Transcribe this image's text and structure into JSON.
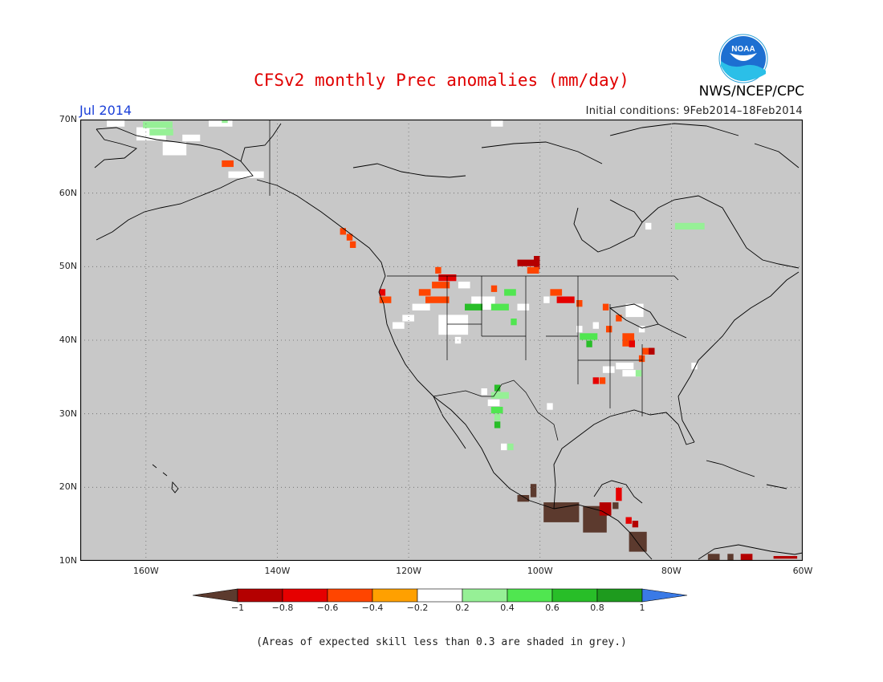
{
  "header": {
    "title": "CFSv2 monthly Prec anomalies (mm/day)",
    "month": "Jul 2014",
    "initial_conditions": "Initial conditions: 9Feb2014–18Feb2014",
    "agency": "NWS/NCEP/CPC",
    "logo_text": "NOAA"
  },
  "map": {
    "lon_range": [
      -170,
      -60
    ],
    "lat_range": [
      10,
      70
    ],
    "background_color": "#c8c8c8",
    "grid": "dotted",
    "lat_ticks": [
      {
        "value": 70,
        "label": "70N"
      },
      {
        "value": 60,
        "label": "60N"
      },
      {
        "value": 50,
        "label": "50N"
      },
      {
        "value": 40,
        "label": "40N"
      },
      {
        "value": 30,
        "label": "30N"
      },
      {
        "value": 20,
        "label": "20N"
      },
      {
        "value": 10,
        "label": "10N"
      }
    ],
    "lon_ticks": [
      {
        "value": -160,
        "label": "160W"
      },
      {
        "value": -140,
        "label": "140W"
      },
      {
        "value": -120,
        "label": "120W"
      },
      {
        "value": -100,
        "label": "100W"
      },
      {
        "value": -80,
        "label": "80W"
      },
      {
        "value": -60,
        "label": "60W"
      }
    ],
    "anomaly_cells": [
      {
        "lon": -165.5,
        "lat": 69.5,
        "w": 3,
        "h": 1,
        "v": 0
      },
      {
        "lon": -161,
        "lat": 68.5,
        "w": 5,
        "h": 2,
        "v": 0
      },
      {
        "lon": -160,
        "lat": 69.3,
        "w": 5,
        "h": 1,
        "v": 0.3
      },
      {
        "lon": -159,
        "lat": 68.3,
        "w": 4,
        "h": 1,
        "v": 0.3
      },
      {
        "lon": -157,
        "lat": 66.5,
        "w": 4,
        "h": 2,
        "v": 0
      },
      {
        "lon": -154,
        "lat": 67.5,
        "w": 3,
        "h": 1,
        "v": 0
      },
      {
        "lon": -150,
        "lat": 69.5,
        "w": 4,
        "h": 1,
        "v": 0
      },
      {
        "lon": -148,
        "lat": 70,
        "w": 1,
        "h": 1,
        "v": 0.3
      },
      {
        "lon": -148,
        "lat": 64,
        "w": 2,
        "h": 1,
        "v": -0.4
      },
      {
        "lon": -147,
        "lat": 62.5,
        "w": 6,
        "h": 1,
        "v": 0
      },
      {
        "lon": -107,
        "lat": 69.5,
        "w": 2,
        "h": 1,
        "v": 0
      },
      {
        "lon": -130,
        "lat": 54.8,
        "w": 1,
        "h": 1,
        "v": -0.4
      },
      {
        "lon": -129,
        "lat": 54,
        "w": 1,
        "h": 1,
        "v": -0.4
      },
      {
        "lon": -128.5,
        "lat": 53,
        "w": 1,
        "h": 1,
        "v": -0.4
      },
      {
        "lon": -124,
        "lat": 46.5,
        "w": 1,
        "h": 1,
        "v": -0.6
      },
      {
        "lon": -124,
        "lat": 45.5,
        "w": 2,
        "h": 1,
        "v": -0.4
      },
      {
        "lon": -115.5,
        "lat": 49.5,
        "w": 1,
        "h": 1,
        "v": -0.4
      },
      {
        "lon": -115,
        "lat": 48.5,
        "w": 3,
        "h": 1,
        "v": -0.6
      },
      {
        "lon": -116,
        "lat": 47.5,
        "w": 3,
        "h": 1,
        "v": -0.4
      },
      {
        "lon": -118,
        "lat": 46.5,
        "w": 2,
        "h": 1,
        "v": -0.4
      },
      {
        "lon": -117,
        "lat": 45.5,
        "w": 4,
        "h": 1,
        "v": -0.4
      },
      {
        "lon": -119,
        "lat": 44.5,
        "w": 3,
        "h": 1,
        "v": 0
      },
      {
        "lon": -115,
        "lat": 43,
        "w": 5,
        "h": 3,
        "v": 0
      },
      {
        "lon": -110,
        "lat": 45.5,
        "w": 4,
        "h": 2,
        "v": 0
      },
      {
        "lon": -111,
        "lat": 44.5,
        "w": 3,
        "h": 1,
        "v": 0.6
      },
      {
        "lon": -107,
        "lat": 44.5,
        "w": 3,
        "h": 1,
        "v": 0.4
      },
      {
        "lon": -120.5,
        "lat": 43,
        "w": 2,
        "h": 1,
        "v": 0
      },
      {
        "lon": -122,
        "lat": 42,
        "w": 2,
        "h": 1,
        "v": 0
      },
      {
        "lon": -112,
        "lat": 47.5,
        "w": 2,
        "h": 1,
        "v": 0
      },
      {
        "lon": -107,
        "lat": 47,
        "w": 1,
        "h": 1,
        "v": -0.4
      },
      {
        "lon": -105,
        "lat": 46.5,
        "w": 2,
        "h": 1,
        "v": 0.4
      },
      {
        "lon": -103,
        "lat": 44.5,
        "w": 2,
        "h": 1,
        "v": 0
      },
      {
        "lon": -104,
        "lat": 42.5,
        "w": 1,
        "h": 1,
        "v": 0.4
      },
      {
        "lon": -112,
        "lat": 42,
        "w": 1,
        "h": 1,
        "v": 0
      },
      {
        "lon": -112.5,
        "lat": 40,
        "w": 1,
        "h": 1,
        "v": 0
      },
      {
        "lon": -103,
        "lat": 50.5,
        "w": 3,
        "h": 1,
        "v": -0.8
      },
      {
        "lon": -100.5,
        "lat": 51,
        "w": 1,
        "h": 2,
        "v": -0.8
      },
      {
        "lon": -101.5,
        "lat": 49.5,
        "w": 2,
        "h": 1,
        "v": -0.4
      },
      {
        "lon": -98,
        "lat": 46.5,
        "w": 2,
        "h": 1,
        "v": -0.4
      },
      {
        "lon": -97,
        "lat": 45.5,
        "w": 3,
        "h": 1,
        "v": -0.6
      },
      {
        "lon": -99,
        "lat": 45.5,
        "w": 1,
        "h": 1,
        "v": 0
      },
      {
        "lon": -94,
        "lat": 45,
        "w": 1,
        "h": 1,
        "v": -0.4
      },
      {
        "lon": -90,
        "lat": 44.5,
        "w": 1,
        "h": 1,
        "v": -0.4
      },
      {
        "lon": -86.5,
        "lat": 44.5,
        "w": 3,
        "h": 2,
        "v": 0
      },
      {
        "lon": -88,
        "lat": 43,
        "w": 1,
        "h": 1,
        "v": -0.4
      },
      {
        "lon": -91.5,
        "lat": 42,
        "w": 1,
        "h": 1,
        "v": 0
      },
      {
        "lon": -94,
        "lat": 41.5,
        "w": 1,
        "h": 1,
        "v": 0
      },
      {
        "lon": -93.5,
        "lat": 40.5,
        "w": 3,
        "h": 1,
        "v": 0.4
      },
      {
        "lon": -92.5,
        "lat": 39.5,
        "w": 1,
        "h": 1,
        "v": 0.6
      },
      {
        "lon": -89.5,
        "lat": 41.5,
        "w": 1,
        "h": 1,
        "v": -0.4
      },
      {
        "lon": -87,
        "lat": 40.5,
        "w": 2,
        "h": 2,
        "v": -0.4
      },
      {
        "lon": -86,
        "lat": 39.5,
        "w": 1,
        "h": 1,
        "v": -0.6
      },
      {
        "lon": -84.5,
        "lat": 41.5,
        "w": 1,
        "h": 1,
        "v": 0
      },
      {
        "lon": -84,
        "lat": 38.5,
        "w": 2,
        "h": 1,
        "v": -0.4
      },
      {
        "lon": -83,
        "lat": 38.5,
        "w": 1,
        "h": 1,
        "v": -0.8
      },
      {
        "lon": -84.5,
        "lat": 37.5,
        "w": 1,
        "h": 1,
        "v": -0.4
      },
      {
        "lon": -88,
        "lat": 36.5,
        "w": 3,
        "h": 1,
        "v": 0
      },
      {
        "lon": -90,
        "lat": 36,
        "w": 2,
        "h": 1,
        "v": 0
      },
      {
        "lon": -91.5,
        "lat": 34.5,
        "w": 1,
        "h": 1,
        "v": -0.6
      },
      {
        "lon": -90.5,
        "lat": 34.5,
        "w": 1,
        "h": 1,
        "v": -0.4
      },
      {
        "lon": -87,
        "lat": 35.5,
        "w": 3,
        "h": 1,
        "v": 0
      },
      {
        "lon": -85,
        "lat": 35.5,
        "w": 1,
        "h": 1,
        "v": 0.3
      },
      {
        "lon": -76.5,
        "lat": 36.5,
        "w": 1,
        "h": 1,
        "v": 0
      },
      {
        "lon": -106.5,
        "lat": 33.5,
        "w": 1,
        "h": 1,
        "v": 0.6
      },
      {
        "lon": -107,
        "lat": 32.5,
        "w": 3,
        "h": 1,
        "v": 0.3
      },
      {
        "lon": -108.5,
        "lat": 33,
        "w": 1,
        "h": 1,
        "v": 0
      },
      {
        "lon": -107.5,
        "lat": 31.5,
        "w": 2,
        "h": 1,
        "v": 0
      },
      {
        "lon": -107,
        "lat": 30.5,
        "w": 2,
        "h": 1,
        "v": 0.4
      },
      {
        "lon": -106.5,
        "lat": 29.5,
        "w": 1,
        "h": 1,
        "v": 0.3
      },
      {
        "lon": -106.5,
        "lat": 28.5,
        "w": 1,
        "h": 1,
        "v": 0.6
      },
      {
        "lon": -105.5,
        "lat": 25.5,
        "w": 1,
        "h": 1,
        "v": 0
      },
      {
        "lon": -104.5,
        "lat": 25.5,
        "w": 1,
        "h": 1,
        "v": 0.3
      },
      {
        "lon": -98.5,
        "lat": 31,
        "w": 1,
        "h": 1,
        "v": 0
      },
      {
        "lon": -101,
        "lat": 20,
        "w": 1,
        "h": 2,
        "v": -1
      },
      {
        "lon": -99,
        "lat": 17.5,
        "w": 6,
        "h": 3,
        "v": -1
      },
      {
        "lon": -103,
        "lat": 18.5,
        "w": 2,
        "h": 1,
        "v": -1
      },
      {
        "lon": -93,
        "lat": 17,
        "w": 4,
        "h": 4,
        "v": -1
      },
      {
        "lon": -90.5,
        "lat": 17.5,
        "w": 2,
        "h": 2,
        "v": -0.8
      },
      {
        "lon": -88,
        "lat": 19.5,
        "w": 1,
        "h": 2,
        "v": -0.6
      },
      {
        "lon": -88.5,
        "lat": 17.5,
        "w": 1,
        "h": 1,
        "v": -1
      },
      {
        "lon": -86.5,
        "lat": 15.5,
        "w": 1,
        "h": 1,
        "v": -0.6
      },
      {
        "lon": -85.5,
        "lat": 15,
        "w": 1,
        "h": 1,
        "v": -0.8
      },
      {
        "lon": -86,
        "lat": 13.5,
        "w": 3,
        "h": 3,
        "v": -1
      },
      {
        "lon": -74,
        "lat": 10.5,
        "w": 2,
        "h": 1,
        "v": -1
      },
      {
        "lon": -71,
        "lat": 10.5,
        "w": 1,
        "h": 1,
        "v": -1
      },
      {
        "lon": -69,
        "lat": 10.5,
        "w": 2,
        "h": 1,
        "v": -0.8
      },
      {
        "lon": -64,
        "lat": 10.2,
        "w": 4,
        "h": 0.4,
        "v": -0.8
      },
      {
        "lon": -79,
        "lat": 55.5,
        "w": 5,
        "h": 1,
        "v": 0.3
      },
      {
        "lon": -83.5,
        "lat": 55.5,
        "w": 1,
        "h": 1,
        "v": 0
      }
    ]
  },
  "colorbar": {
    "segments": [
      {
        "color": "#5c3a2e"
      },
      {
        "color": "#b40000"
      },
      {
        "color": "#e60000"
      },
      {
        "color": "#ff4500"
      },
      {
        "color": "#ffa000"
      },
      {
        "color": "#ffffff"
      },
      {
        "color": "#96f096"
      },
      {
        "color": "#50e650"
      },
      {
        "color": "#28be28"
      },
      {
        "color": "#1e9b1e"
      },
      {
        "color": "#3a7ae6"
      }
    ],
    "labels": [
      "−1",
      "−0.8",
      "−0.6",
      "−0.4",
      "−0.2",
      "0.2",
      "0.4",
      "0.6",
      "0.8",
      "1"
    ]
  },
  "footer": {
    "note": "(Areas of expected skill less than 0.3 are shaded in grey.)"
  }
}
